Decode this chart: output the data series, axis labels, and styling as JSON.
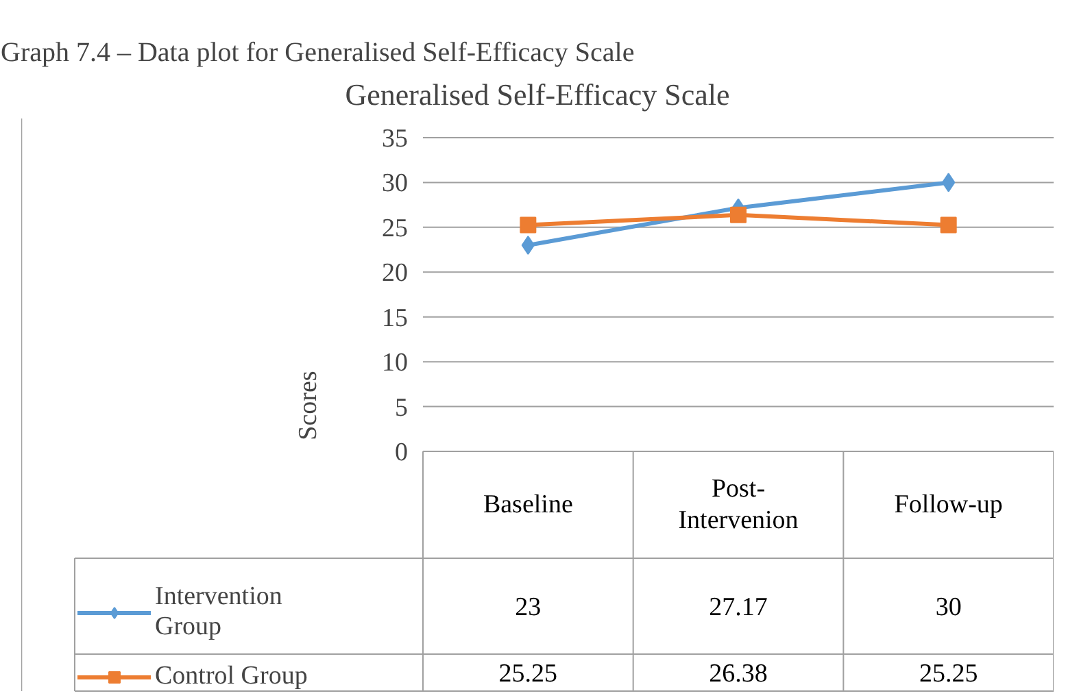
{
  "chart_data": {
    "type": "line",
    "title": "Generalised Self-Efficacy Scale",
    "ylabel": "Scores",
    "annotations": [
      "Graph 7.4 – Data plot for Generalised Self-Efficacy Scale"
    ],
    "categories": [
      "Baseline",
      "Post-\nIntervenion",
      "Follow-up"
    ],
    "series": [
      {
        "name": "Intervention Group",
        "color": "#5b9bd5",
        "marker": "diamond",
        "values": [
          23,
          27.17,
          30
        ]
      },
      {
        "name": "Control Group",
        "color": "#ed7d31",
        "marker": "square",
        "values": [
          25.25,
          26.38,
          25.25
        ]
      }
    ],
    "ylim": [
      0,
      35
    ],
    "yticks": [
      0,
      5,
      10,
      15,
      20,
      25,
      30,
      35
    ],
    "grid": "y",
    "legend": "bottom",
    "data_labels": true
  }
}
